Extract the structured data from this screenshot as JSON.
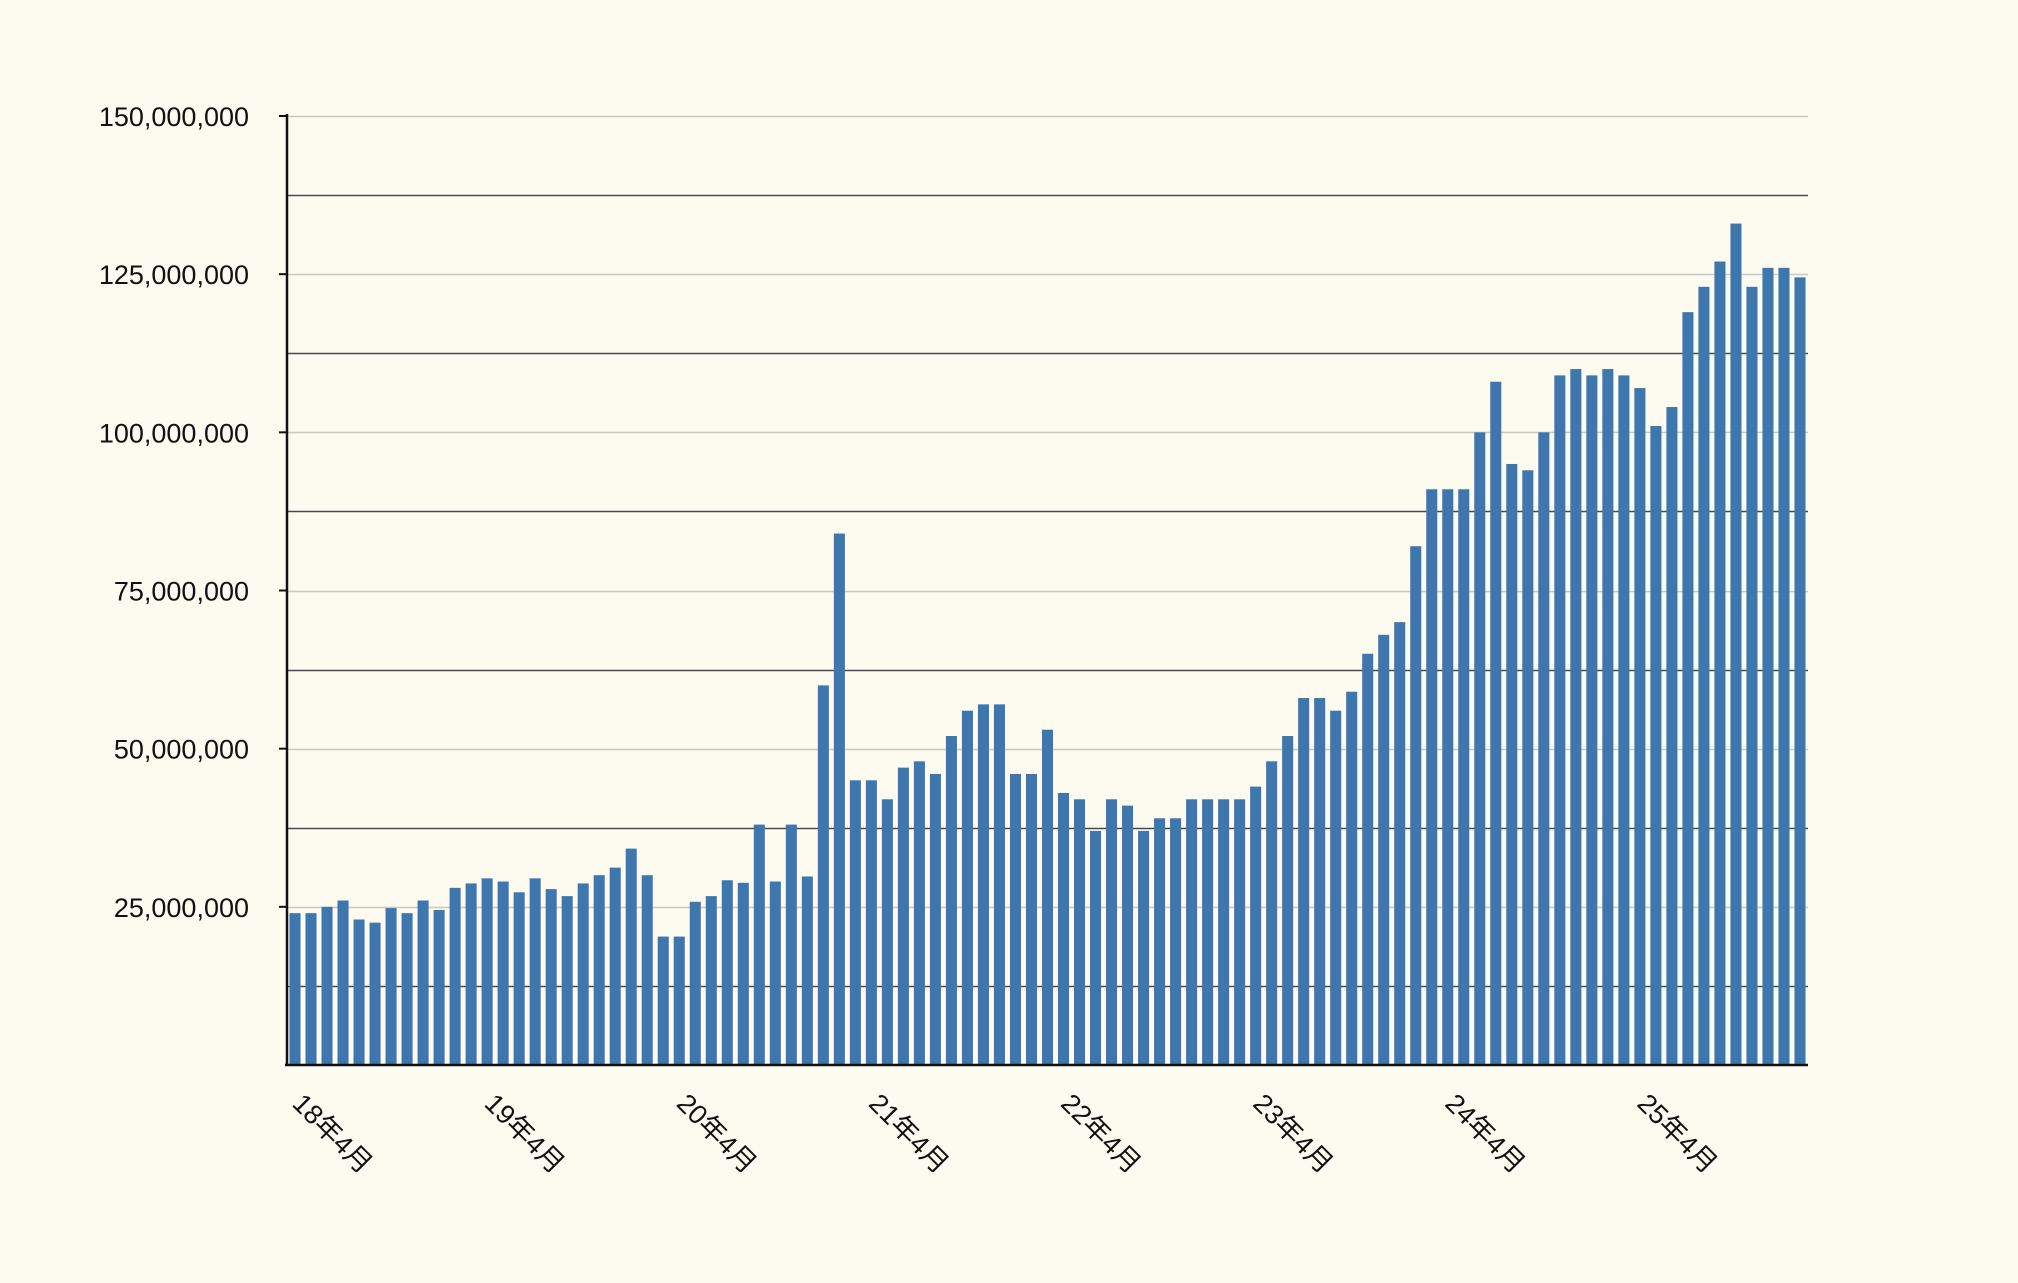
{
  "chart_data": {
    "type": "bar",
    "title": "",
    "xlabel": "",
    "ylabel": "",
    "ylim": [
      0,
      150000000
    ],
    "grid": true,
    "colors": {
      "bar": "#3e77ad",
      "background": "#fdfbef",
      "major_grid": "#c9c9c2",
      "minor_grid": "#4a4a4a",
      "axis": "#111111"
    },
    "y_ticks": [
      {
        "value": 25000000,
        "label": "25,000,000"
      },
      {
        "value": 50000000,
        "label": "50,000,000"
      },
      {
        "value": 75000000,
        "label": "75,000,000"
      },
      {
        "value": 100000000,
        "label": "100,000,000"
      },
      {
        "value": 125000000,
        "label": "125,000,000"
      },
      {
        "value": 150000000,
        "label": "150,000,000"
      }
    ],
    "x_ticks": [
      {
        "index": 0,
        "label": "18年4月"
      },
      {
        "index": 12,
        "label": "19年4月"
      },
      {
        "index": 24,
        "label": "20年4月"
      },
      {
        "index": 36,
        "label": "21年4月"
      },
      {
        "index": 48,
        "label": "22年4月"
      },
      {
        "index": 60,
        "label": "23年4月"
      },
      {
        "index": 72,
        "label": "24年4月"
      },
      {
        "index": 84,
        "label": "25年4月"
      }
    ],
    "values": [
      24000000,
      24000000,
      25000000,
      26000000,
      23000000,
      22500000,
      24800000,
      24000000,
      26000000,
      24500000,
      28000000,
      28700000,
      29500000,
      29000000,
      27300000,
      29500000,
      27800000,
      26700000,
      28700000,
      30000000,
      31200000,
      34200000,
      30000000,
      20300000,
      20300000,
      25800000,
      26700000,
      29200000,
      28800000,
      38000000,
      29000000,
      38000000,
      29800000,
      60000000,
      84000000,
      45000000,
      45000000,
      42000000,
      47000000,
      48000000,
      46000000,
      52000000,
      56000000,
      57000000,
      57000000,
      46000000,
      46000000,
      53000000,
      43000000,
      42000000,
      37000000,
      42000000,
      41000000,
      37000000,
      39000000,
      39000000,
      42000000,
      42000000,
      42000000,
      42000000,
      44000000,
      48000000,
      52000000,
      58000000,
      58000000,
      56000000,
      59000000,
      65000000,
      68000000,
      70000000,
      82000000,
      91000000,
      91000000,
      91000000,
      100000000,
      108000000,
      95000000,
      94000000,
      100000000,
      109000000,
      110000000,
      109000000,
      110000000,
      109000000,
      107000000,
      101000000,
      104000000,
      119000000,
      123000000,
      127000000,
      133000000,
      123000000,
      126000000,
      126000000,
      124500000
    ]
  }
}
